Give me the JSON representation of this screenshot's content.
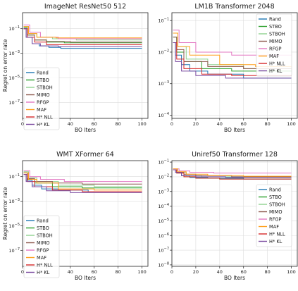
{
  "series_meta": [
    {
      "name": "Rand",
      "color": "#1f77b4"
    },
    {
      "name": "STBO",
      "color": "#2ca02c"
    },
    {
      "name": "STBOH",
      "color": "#8fd18f"
    },
    {
      "name": "MIMO",
      "color": "#8c564b"
    },
    {
      "name": "RFGP",
      "color": "#e377c2"
    },
    {
      "name": "MAF",
      "color": "#ff9f1a"
    },
    {
      "name": "H* NLL",
      "color": "#d62728"
    },
    {
      "name": "H* KL",
      "color": "#7b4ba0"
    }
  ],
  "chart_data": [
    {
      "type": "line",
      "title": "ImageNet ResNet50 512",
      "xlabel": "BO Iters",
      "ylabel": "Regret on error rate",
      "xlim": [
        0,
        105
      ],
      "ylim_log10": [
        -8.3,
        0.3
      ],
      "xticks": [
        0,
        20,
        40,
        60,
        80,
        100
      ],
      "xtick_labels": [
        "0",
        "20",
        "40",
        "60",
        "80",
        "100"
      ],
      "yticks": [
        -1,
        -3,
        -5,
        -7
      ],
      "ytick_labels": [
        "10",
        "10",
        "10",
        "10"
      ],
      "ytick_exps": [
        "−1",
        "−3",
        "−5",
        "−7"
      ],
      "legend": "bottom-left",
      "grid": true,
      "series": [
        {
          "name": "Rand",
          "x": [
            1,
            3,
            8,
            14,
            22,
            32,
            100
          ],
          "y": [
            0.1,
            0.02,
            0.006,
            0.004,
            0.003,
            0.0025,
            0.0025
          ]
        },
        {
          "name": "STBO",
          "x": [
            1,
            4,
            10,
            20,
            35,
            100
          ],
          "y": [
            0.12,
            0.03,
            0.012,
            0.008,
            0.007,
            0.007
          ]
        },
        {
          "name": "STBOH",
          "x": [
            1,
            5,
            12,
            25,
            45,
            100
          ],
          "y": [
            0.15,
            0.04,
            0.02,
            0.015,
            0.012,
            0.012
          ]
        },
        {
          "name": "MIMO",
          "x": [
            1,
            4,
            10,
            20,
            40,
            100
          ],
          "y": [
            0.1,
            0.03,
            0.012,
            0.009,
            0.008,
            0.008
          ]
        },
        {
          "name": "RFGP",
          "x": [
            1,
            6,
            15,
            30,
            100
          ],
          "y": [
            0.2,
            0.05,
            0.02,
            0.015,
            0.015
          ]
        },
        {
          "name": "MAF",
          "x": [
            1,
            5,
            12,
            28,
            100
          ],
          "y": [
            0.15,
            0.04,
            0.02,
            0.018,
            0.018
          ]
        },
        {
          "name": "H* NLL",
          "x": [
            1,
            4,
            10,
            20,
            30,
            100
          ],
          "y": [
            0.1,
            0.02,
            0.008,
            0.005,
            0.005,
            0.005
          ]
        },
        {
          "name": "H* KL",
          "x": [
            1,
            3,
            8,
            15,
            30,
            100
          ],
          "y": [
            0.1,
            0.02,
            0.006,
            0.004,
            0.0035,
            0.0035
          ]
        }
      ]
    },
    {
      "type": "line",
      "title": "LM1B Transformer 2048",
      "xlabel": "BO Iters",
      "ylabel": "",
      "xlim": [
        0,
        105
      ],
      "ylim_log10": [
        -4.1,
        -0.75
      ],
      "xticks": [
        0,
        20,
        40,
        60,
        80,
        100
      ],
      "xtick_labels": [
        "0",
        "20",
        "40",
        "60",
        "80",
        "100"
      ],
      "yticks": [
        -1,
        -2,
        -3,
        -4
      ],
      "ytick_labels": [
        "10",
        "10",
        "10",
        "10"
      ],
      "ytick_exps": [
        "−1",
        "−2",
        "−3",
        "−4"
      ],
      "legend": "top-right",
      "grid": true,
      "series": [
        {
          "name": "Rand",
          "x": [
            1,
            3,
            8,
            15,
            30,
            60,
            100
          ],
          "y": [
            0.02,
            0.008,
            0.004,
            0.0025,
            0.002,
            0.0015,
            0.0015
          ]
        },
        {
          "name": "STBO",
          "x": [
            1,
            4,
            10,
            25,
            50,
            100
          ],
          "y": [
            0.03,
            0.01,
            0.005,
            0.003,
            0.0025,
            0.0025
          ]
        },
        {
          "name": "STBOH",
          "x": [
            1,
            5,
            12,
            30,
            60,
            100
          ],
          "y": [
            0.04,
            0.015,
            0.006,
            0.004,
            0.003,
            0.003
          ]
        },
        {
          "name": "MIMO",
          "x": [
            1,
            4,
            10,
            30,
            60,
            100
          ],
          "y": [
            0.03,
            0.012,
            0.005,
            0.0035,
            0.003,
            0.003
          ]
        },
        {
          "name": "RFGP",
          "x": [
            1,
            6,
            20,
            50,
            100
          ],
          "y": [
            0.05,
            0.02,
            0.01,
            0.008,
            0.008
          ]
        },
        {
          "name": "MAF",
          "x": [
            1,
            5,
            15,
            40,
            70,
            100
          ],
          "y": [
            0.04,
            0.015,
            0.008,
            0.004,
            0.0035,
            0.0035
          ]
        },
        {
          "name": "H* NLL",
          "x": [
            1,
            4,
            10,
            25,
            50,
            100
          ],
          "y": [
            0.02,
            0.006,
            0.003,
            0.002,
            0.0018,
            0.0018
          ]
        },
        {
          "name": "H* KL",
          "x": [
            1,
            3,
            8,
            20,
            45,
            100
          ],
          "y": [
            0.02,
            0.005,
            0.0025,
            0.0018,
            0.0015,
            0.0015
          ]
        }
      ]
    },
    {
      "type": "line",
      "title": "WMT XFormer 64",
      "xlabel": "BO Iters",
      "ylabel": "Regret on error rate",
      "xlim": [
        0,
        105
      ],
      "ylim_log10": [
        -8.3,
        0.3
      ],
      "xticks": [
        0,
        20,
        40,
        60,
        80,
        100
      ],
      "xtick_labels": [
        "0",
        "20",
        "40",
        "60",
        "80",
        "100"
      ],
      "yticks": [
        -1,
        -3,
        -5,
        -7
      ],
      "ytick_labels": [
        "10",
        "10",
        "10",
        "10"
      ],
      "ytick_exps": [
        "−1",
        "−3",
        "−5",
        "−7"
      ],
      "legend": "bottom-left",
      "grid": true,
      "series": [
        {
          "name": "Rand",
          "x": [
            1,
            3,
            8,
            16,
            30,
            55,
            100
          ],
          "y": [
            0.15,
            0.05,
            0.02,
            0.01,
            0.008,
            0.006,
            0.006
          ]
        },
        {
          "name": "STBO",
          "x": [
            1,
            4,
            10,
            25,
            50,
            100
          ],
          "y": [
            0.2,
            0.06,
            0.03,
            0.015,
            0.012,
            0.012
          ]
        },
        {
          "name": "STBOH",
          "x": [
            1,
            5,
            12,
            30,
            60,
            100
          ],
          "y": [
            0.25,
            0.08,
            0.04,
            0.02,
            0.015,
            0.015
          ]
        },
        {
          "name": "MIMO",
          "x": [
            1,
            4,
            10,
            25,
            50,
            100
          ],
          "y": [
            0.2,
            0.07,
            0.04,
            0.03,
            0.025,
            0.025
          ]
        },
        {
          "name": "RFGP",
          "x": [
            1,
            6,
            15,
            35,
            100
          ],
          "y": [
            0.3,
            0.1,
            0.06,
            0.04,
            0.04
          ]
        },
        {
          "name": "MAF",
          "x": [
            1,
            5,
            12,
            30,
            60,
            100
          ],
          "y": [
            0.2,
            0.06,
            0.03,
            0.01,
            0.008,
            0.008
          ]
        },
        {
          "name": "H* NLL",
          "x": [
            1,
            4,
            10,
            25,
            50,
            100
          ],
          "y": [
            0.15,
            0.04,
            0.015,
            0.008,
            0.006,
            0.006
          ]
        },
        {
          "name": "H* KL",
          "x": [
            1,
            3,
            8,
            20,
            40,
            100
          ],
          "y": [
            0.15,
            0.04,
            0.015,
            0.007,
            0.005,
            0.005
          ]
        }
      ]
    },
    {
      "type": "line",
      "title": "Uniref50 Transformer 128",
      "xlabel": "BO Iters",
      "ylabel": "",
      "xlim": [
        0,
        105
      ],
      "ylim_log10": [
        -8.1,
        -0.9
      ],
      "xticks": [
        0,
        20,
        40,
        60,
        80,
        100
      ],
      "xtick_labels": [
        "0",
        "20",
        "40",
        "60",
        "80",
        "100"
      ],
      "yticks": [
        -1,
        -2,
        -3,
        -4,
        -5,
        -6,
        -7,
        -8
      ],
      "ytick_labels": [
        "10",
        "10",
        "10",
        "10",
        "10",
        "10",
        "10",
        "10"
      ],
      "ytick_exps": [
        "−1",
        "−2",
        "−3",
        "−4",
        "−5",
        "−6",
        "−7",
        "−8"
      ],
      "legend": "middle-right",
      "grid": true,
      "series": [
        {
          "name": "Rand",
          "x": [
            1,
            3,
            8,
            15,
            30,
            60,
            100
          ],
          "y": [
            0.03,
            0.02,
            0.012,
            0.009,
            0.008,
            0.007,
            0.007
          ]
        },
        {
          "name": "STBO",
          "x": [
            1,
            4,
            10,
            20,
            40,
            100
          ],
          "y": [
            0.03,
            0.018,
            0.01,
            0.008,
            0.007,
            0.007
          ]
        },
        {
          "name": "STBOH",
          "x": [
            1,
            5,
            12,
            25,
            60,
            100
          ],
          "y": [
            0.03,
            0.02,
            0.012,
            0.01,
            0.009,
            0.009
          ]
        },
        {
          "name": "MIMO",
          "x": [
            1,
            4,
            10,
            20,
            50,
            100
          ],
          "y": [
            0.03,
            0.02,
            0.015,
            0.012,
            0.01,
            0.01
          ]
        },
        {
          "name": "RFGP",
          "x": [
            1,
            6,
            15,
            35,
            100
          ],
          "y": [
            0.035,
            0.025,
            0.02,
            0.018,
            0.018
          ]
        },
        {
          "name": "MAF",
          "x": [
            1,
            5,
            12,
            30,
            60,
            100
          ],
          "y": [
            0.035,
            0.022,
            0.015,
            0.012,
            0.011,
            0.011
          ]
        },
        {
          "name": "H* NLL",
          "x": [
            1,
            4,
            10,
            20,
            40,
            100
          ],
          "y": [
            0.03,
            0.018,
            0.01,
            0.008,
            0.007,
            0.007
          ]
        },
        {
          "name": "H* KL",
          "x": [
            1,
            3,
            8,
            20,
            45,
            100
          ],
          "y": [
            0.03,
            0.02,
            0.012,
            0.01,
            0.009,
            0.009
          ]
        }
      ]
    }
  ]
}
